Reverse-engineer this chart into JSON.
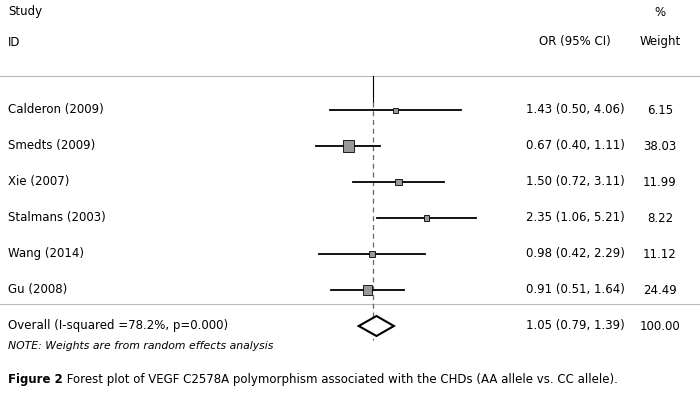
{
  "studies": [
    "Calderon (2009)",
    "Smedts (2009)",
    "Xie (2007)",
    "Stalmans (2003)",
    "Wang (2014)",
    "Gu (2008)"
  ],
  "or": [
    1.43,
    0.67,
    1.5,
    2.35,
    0.98,
    0.91
  ],
  "ci_low": [
    0.5,
    0.4,
    0.72,
    1.06,
    0.42,
    0.51
  ],
  "ci_high": [
    4.06,
    1.11,
    3.11,
    5.21,
    2.29,
    1.64
  ],
  "weights": [
    6.15,
    38.03,
    11.99,
    8.22,
    11.12,
    24.49
  ],
  "or_labels": [
    "1.43 (0.50, 4.06)",
    "0.67 (0.40, 1.11)",
    "1.50 (0.72, 3.11)",
    "2.35 (1.06, 5.21)",
    "0.98 (0.42, 2.29)",
    "0.91 (0.51, 1.64)"
  ],
  "weight_labels": [
    "6.15",
    "38.03",
    "11.99",
    "8.22",
    "11.12",
    "24.49"
  ],
  "overall_or": 1.05,
  "overall_ci_low": 0.79,
  "overall_ci_high": 1.39,
  "overall_or_label": "1.05 (0.79, 1.39)",
  "overall_weight_label": "100.00",
  "overall_label": "Overall (I-squared =78.2%, p=0.000)",
  "note": "NOTE: Weights are from random effects analysis",
  "title_bold": "Figure 2",
  "title_rest": " Forest plot of VEGF C2578A polymorphism associated with the CHDs (AA allele vs. CC allele).",
  "col_study": "Study",
  "col_id": "ID",
  "col_or": "OR (95% CI)",
  "col_weight": "Weight",
  "col_pct": "%",
  "xlim_low": 0.1,
  "xlim_high": 6.5,
  "ref_line": 1.0,
  "background": "#ffffff",
  "text_color": "#000000",
  "line_color": "#000000",
  "sep_color": "#bbbbbb",
  "dashed_color": "#666666",
  "box_color": "#999999",
  "diamond_facecolor": "#ffffff",
  "diamond_edgecolor": "#000000"
}
